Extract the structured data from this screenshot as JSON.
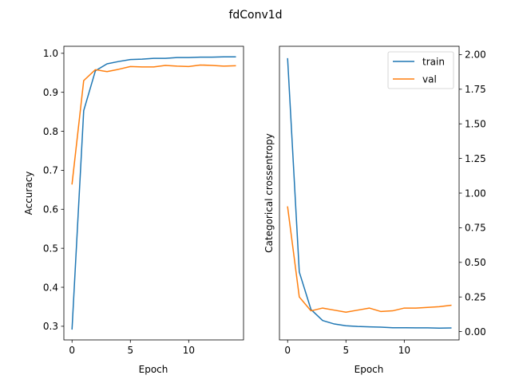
{
  "figure": {
    "suptitle": "fdConv1d"
  },
  "chart_data": [
    {
      "type": "line",
      "title": "",
      "xlabel": "Epoch",
      "ylabel": "Accuracy",
      "xlim": [
        -0.7,
        14.7
      ],
      "ylim": [
        0.265,
        1.018
      ],
      "xticks": [
        0,
        5,
        10
      ],
      "yticks": [
        0.3,
        0.4,
        0.5,
        0.6,
        0.7,
        0.8,
        0.9,
        1.0
      ],
      "ytick_labels": [
        "0.3",
        "0.4",
        "0.5",
        "0.6",
        "0.7",
        "0.8",
        "0.9",
        "1.0"
      ],
      "yaxis_side": "left",
      "grid": false,
      "x": [
        0,
        1,
        2,
        3,
        4,
        5,
        6,
        7,
        8,
        9,
        10,
        11,
        12,
        13,
        14
      ],
      "series": [
        {
          "name": "train",
          "color": "#1f77b4",
          "values": [
            0.293,
            0.853,
            0.955,
            0.973,
            0.979,
            0.984,
            0.985,
            0.987,
            0.987,
            0.989,
            0.989,
            0.99,
            0.99,
            0.991,
            0.991
          ]
        },
        {
          "name": "val",
          "color": "#ff7f0e",
          "values": [
            0.665,
            0.93,
            0.958,
            0.953,
            0.959,
            0.966,
            0.965,
            0.965,
            0.969,
            0.967,
            0.966,
            0.97,
            0.969,
            0.967,
            0.968
          ]
        }
      ]
    },
    {
      "type": "line",
      "title": "",
      "xlabel": "Epoch",
      "ylabel": "Categorical crossentropy",
      "xlim": [
        -0.7,
        14.7
      ],
      "ylim": [
        -0.06,
        2.06
      ],
      "xticks": [
        0,
        5,
        10
      ],
      "yticks": [
        0.0,
        0.25,
        0.5,
        0.75,
        1.0,
        1.25,
        1.5,
        1.75,
        2.0
      ],
      "ytick_labels": [
        "0.00",
        "0.25",
        "0.50",
        "0.75",
        "1.00",
        "1.25",
        "1.50",
        "1.75",
        "2.00"
      ],
      "yaxis_side": "right",
      "grid": false,
      "legend": {
        "placement": "top-right",
        "entries": [
          "train",
          "val"
        ]
      },
      "x": [
        0,
        1,
        2,
        3,
        4,
        5,
        6,
        7,
        8,
        9,
        10,
        11,
        12,
        13,
        14
      ],
      "series": [
        {
          "name": "train",
          "color": "#1f77b4",
          "values": [
            1.97,
            0.43,
            0.16,
            0.08,
            0.055,
            0.042,
            0.037,
            0.034,
            0.032,
            0.028,
            0.028,
            0.027,
            0.027,
            0.025,
            0.026
          ]
        },
        {
          "name": "val",
          "color": "#ff7f0e",
          "values": [
            0.9,
            0.25,
            0.15,
            0.17,
            0.155,
            0.14,
            0.155,
            0.17,
            0.145,
            0.15,
            0.17,
            0.17,
            0.175,
            0.18,
            0.19
          ]
        }
      ]
    }
  ]
}
